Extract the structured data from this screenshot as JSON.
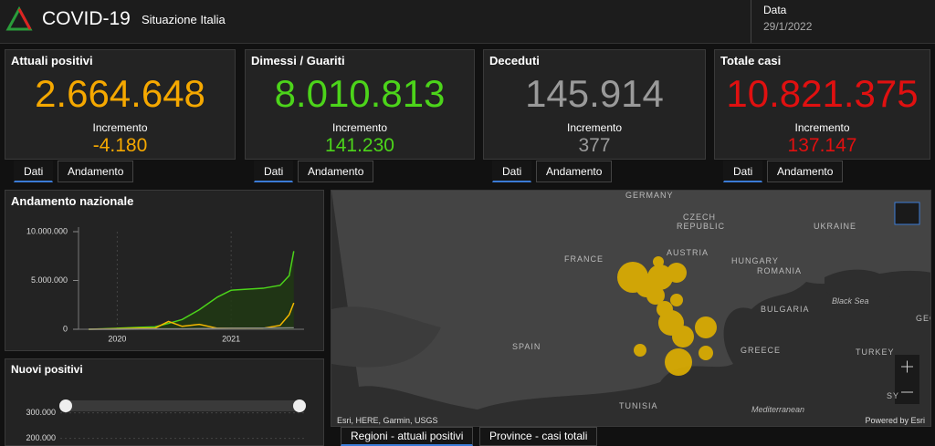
{
  "header": {
    "title": "COVID-19",
    "subtitle": "Situazione Italia",
    "date_label": "Data",
    "date": "29/1/2022"
  },
  "cards": [
    {
      "title": "Attuali positivi",
      "value": "2.664.648",
      "increment_label": "Incremento",
      "increment": "-4.180",
      "color": "#f5a800",
      "tabs": [
        "Dati",
        "Andamento"
      ]
    },
    {
      "title": "Dimessi / Guariti",
      "value": "8.010.813",
      "increment_label": "Incremento",
      "increment": "141.230",
      "color": "#4cd41a",
      "tabs": [
        "Dati",
        "Andamento"
      ]
    },
    {
      "title": "Deceduti",
      "value": "145.914",
      "increment_label": "Incremento",
      "increment": "377",
      "color": "#9a9a9a",
      "tabs": [
        "Dati",
        "Andamento"
      ]
    },
    {
      "title": "Totale casi",
      "value": "10.821.375",
      "increment_label": "Incremento",
      "increment": "137.147",
      "color": "#e01010",
      "tabs": [
        "Dati",
        "Andamento"
      ]
    }
  ],
  "national_trend": {
    "type": "line",
    "title": "Andamento nazionale",
    "x": [
      2019.75,
      2020.0,
      2020.2,
      2020.33,
      2020.45,
      2020.57,
      2020.72,
      2020.88,
      2021.0,
      2021.28,
      2021.43,
      2021.51,
      2021.55
    ],
    "series": [
      {
        "color": "#4cd41a",
        "area": "#1f3a12",
        "values": [
          0,
          100000,
          200000,
          250000,
          600000,
          1000000,
          2000000,
          3300000,
          4000000,
          4200000,
          4500000,
          5500000,
          8000000
        ]
      },
      {
        "color": "#f5b800",
        "values": [
          0,
          50000,
          100000,
          100000,
          800000,
          300000,
          500000,
          100000,
          100000,
          100000,
          400000,
          1500000,
          2700000
        ]
      },
      {
        "color": "#8a8a8a",
        "values": [
          0,
          2000,
          20000,
          30000,
          35000,
          40000,
          60000,
          80000,
          100000,
          120000,
          130000,
          140000,
          146000
        ]
      }
    ],
    "xlim": [
      2019.66,
      2021.6
    ],
    "xticks": [
      2020,
      2021
    ],
    "ylim": [
      0,
      10000000
    ],
    "yticks": [
      0,
      {
        "value": 5000000,
        "label": "5.000.000"
      },
      {
        "value": 10000000,
        "label": "10.000.000"
      }
    ],
    "grid": true
  },
  "new_positives": {
    "type": "bar",
    "title": "Nuovi positivi",
    "ylim": [
      0,
      320000
    ],
    "yticks": [
      {
        "value": 200000,
        "label": "200.000"
      },
      {
        "value": 300000,
        "label": "300.000"
      }
    ]
  },
  "map": {
    "labels": [
      "GERMANY",
      "CZECH",
      "REPUBLIC",
      "UKRAINE",
      "FRANCE",
      "AUSTRIA",
      "HUNGARY",
      "ROMANIA",
      "BULGARIA",
      "Black Sea",
      "SPAIN",
      "GREECE",
      "TURKEY",
      "TUNISIA",
      "Mediterranean",
      "SY",
      "GEC"
    ],
    "attribution": "Esri, HERE, Garmin, USGS",
    "powered_by": "Powered by Esri",
    "tabs": [
      "Regioni - attuali positivi",
      "Province - casi totali"
    ]
  }
}
